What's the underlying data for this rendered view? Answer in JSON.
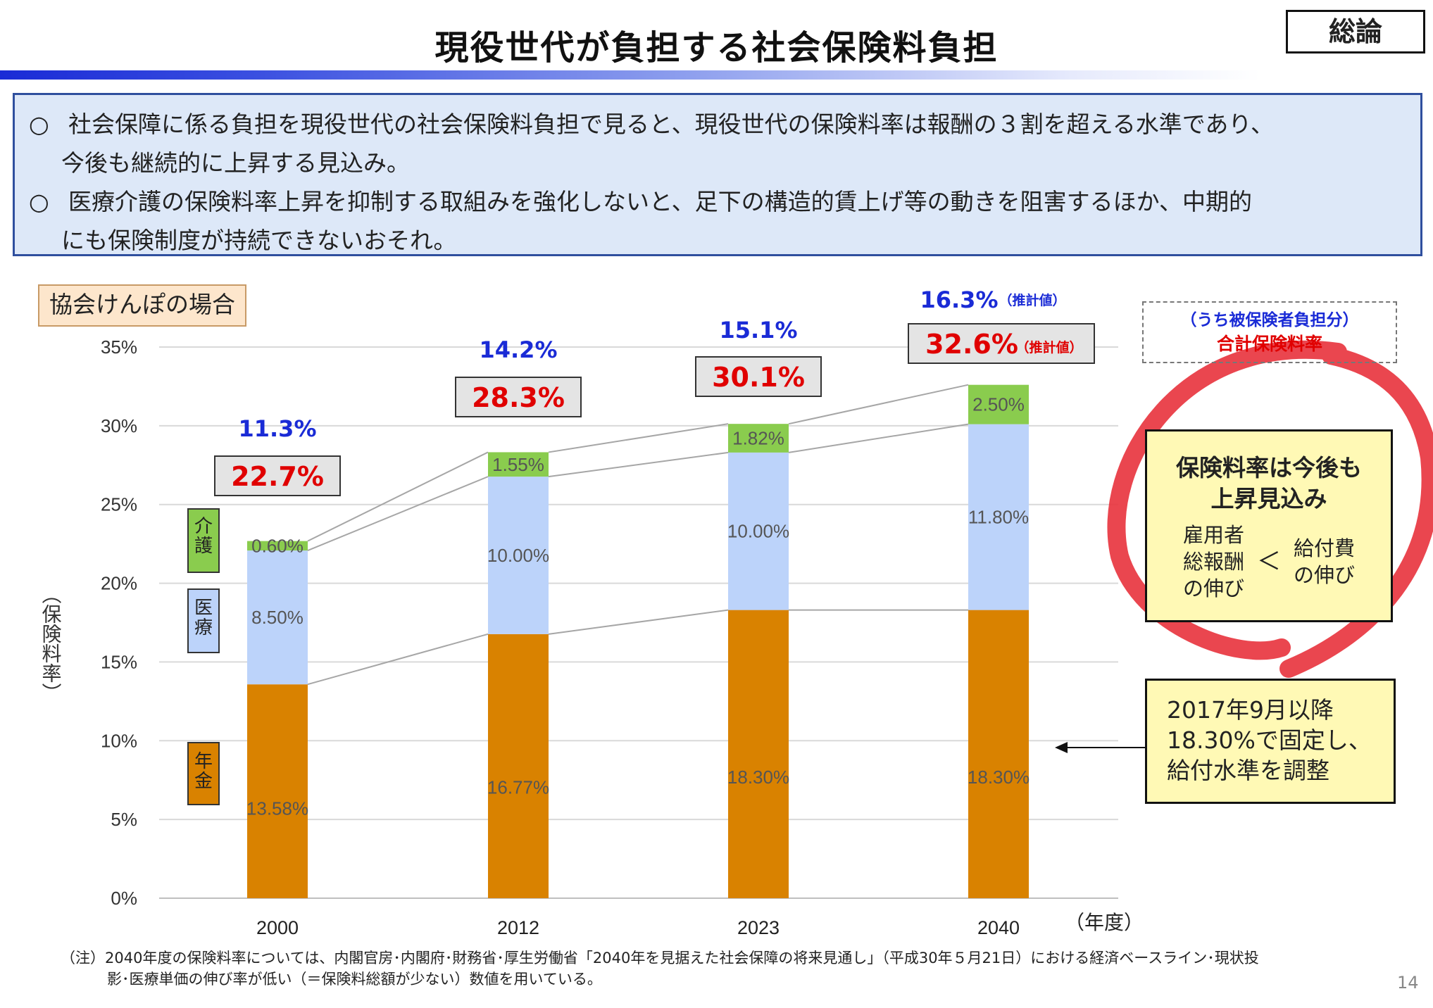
{
  "header": {
    "title": "現役世代が負担する社会保険料負担",
    "tag": "総論"
  },
  "summary": {
    "bullet": "○",
    "bullet2": "○",
    "line1": "社会保障に係る負担を現役世代の社会保険料負担で見ると、現役世代の保険料率は報酬の３割を超える水準であり、",
    "line2": "今後も継続的に上昇する見込み。",
    "line3": "医療介護の保険料率上昇を抑制する取組みを強化しないと、足下の構造的賃上げ等の動きを阻害するほか、中期的",
    "line4": "にも保険制度が持続できないおそれ。"
  },
  "case_label": "協会けんぽの場合",
  "legend_box": {
    "line1": "（うち被保険者負担分）",
    "line2": "合計保険料率"
  },
  "category_labels": {
    "kaigo": "介護",
    "iryo": "医療",
    "nenkin": "年金"
  },
  "outlook": {
    "head1": "保険料率は今後も",
    "head2": "上昇見込み",
    "left1": "雇用者",
    "left2": "総報酬",
    "left3": "の伸び",
    "lt": "＜",
    "right1": "給付費",
    "right2": "の伸び"
  },
  "pension_note": {
    "line1": "2017年9月以降",
    "line2": "18.30%で固定し、",
    "line3": "給付水準を調整"
  },
  "footnote": {
    "line1": "（注）2040年度の保険料率については、内閣官房･内閣府･財務省･厚生労働省「2040年を見据えた社会保障の将来見通し」（平成30年５月21日）における経済ベースライン･現状投",
    "line2": "影･医療単価の伸び率が低い（＝保険料総額が少ない）数値を用いている。"
  },
  "page_number": "14",
  "colors": {
    "nenkin": "#d98200",
    "iryo": "#bcd3fa",
    "kaigo": "#8acc4e",
    "total_red": "#e00000",
    "employee_blue": "#1a2bd6",
    "grid": "#d9d9d9"
  },
  "chart_data": {
    "type": "bar",
    "stacked": true,
    "categories": [
      "2000",
      "2012",
      "2023",
      "2040"
    ],
    "xunit": "（年度）",
    "ylabel": "（保険料率）",
    "ylim": [
      0,
      35
    ],
    "yticks": [
      "0%",
      "5%",
      "10%",
      "15%",
      "20%",
      "25%",
      "30%",
      "35%"
    ],
    "grid": true,
    "series": [
      {
        "name": "年金",
        "values": [
          13.58,
          16.77,
          18.3,
          18.3
        ],
        "labels": [
          "13.58%",
          "16.77%",
          "18.30%",
          "18.30%"
        ]
      },
      {
        "name": "医療",
        "values": [
          8.5,
          10.0,
          10.0,
          11.8
        ],
        "labels": [
          "8.50%",
          "10.00%",
          "10.00%",
          "11.80%"
        ]
      },
      {
        "name": "介護",
        "values": [
          0.6,
          1.55,
          1.82,
          2.5
        ],
        "labels": [
          "0.60%",
          "1.55%",
          "1.82%",
          "2.50%"
        ]
      }
    ],
    "totals": [
      22.7,
      28.3,
      30.1,
      32.6
    ],
    "total_labels": [
      "22.7%",
      "28.3%",
      "30.1%",
      "32.6%"
    ],
    "employee_share": [
      11.3,
      14.2,
      15.1,
      16.3
    ],
    "employee_labels": [
      "11.3%",
      "14.2%",
      "15.1%",
      "16.3%"
    ],
    "estimate_note": "（推計値）"
  }
}
